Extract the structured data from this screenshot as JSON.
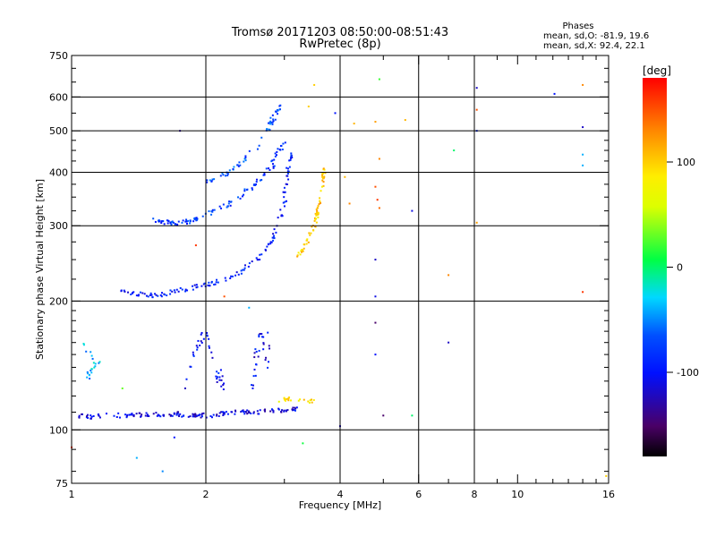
{
  "chart_data": {
    "type": "scatter",
    "title": "Tromsø 20171203 08:50:00-08:51:43",
    "subtitle": "RwPretec (8p)",
    "xlabel": "Frequency [MHz]",
    "ylabel": "Stationary phase Virtual Height [km]",
    "xscale": "log",
    "yscale": "log",
    "xlim": [
      1,
      16
    ],
    "ylim": [
      75,
      750
    ],
    "x_ticks": [
      1,
      2,
      4,
      6,
      8,
      10,
      16
    ],
    "y_ticks": [
      75,
      100,
      200,
      300,
      400,
      500,
      600,
      750
    ],
    "grid": true,
    "info": {
      "heading": "Phases",
      "line_o": "mean, sd,O: -81.9, 19.6",
      "line_x": "mean, sd,X:  92.4, 22.1"
    },
    "colorbar": {
      "label": "[deg]",
      "range": [
        -180,
        180
      ],
      "ticks": [
        -100,
        0,
        100
      ],
      "colormap": "rainbow"
    },
    "traces": [
      {
        "points": [
          [
            1.02,
            108
          ],
          [
            1.1,
            107
          ],
          [
            1.2,
            108
          ],
          [
            1.3,
            108
          ],
          [
            1.4,
            108
          ],
          [
            1.5,
            109
          ],
          [
            1.6,
            108
          ],
          [
            1.7,
            109
          ],
          [
            1.8,
            108
          ],
          [
            1.9,
            108
          ],
          [
            2.0,
            108
          ],
          [
            2.2,
            109
          ],
          [
            2.4,
            110
          ],
          [
            2.6,
            110
          ],
          [
            2.8,
            111
          ],
          [
            3.0,
            111
          ],
          [
            3.2,
            112
          ]
        ],
        "phase": -110,
        "n": 160,
        "spread": 2.5
      },
      {
        "points": [
          [
            1.3,
            210
          ],
          [
            1.4,
            208
          ],
          [
            1.5,
            206
          ],
          [
            1.6,
            207
          ],
          [
            1.7,
            210
          ],
          [
            1.8,
            214
          ],
          [
            2.0,
            218
          ],
          [
            2.2,
            224
          ],
          [
            2.4,
            234
          ],
          [
            2.6,
            250
          ],
          [
            2.8,
            275
          ],
          [
            2.9,
            300
          ],
          [
            3.0,
            340
          ],
          [
            3.05,
            400
          ],
          [
            3.1,
            440
          ]
        ],
        "phase": -95,
        "n": 140,
        "spread": 2.5
      },
      {
        "points": [
          [
            1.5,
            312
          ],
          [
            1.6,
            306
          ],
          [
            1.7,
            304
          ],
          [
            1.8,
            306
          ],
          [
            1.9,
            310
          ],
          [
            2.0,
            318
          ],
          [
            2.2,
            332
          ],
          [
            2.4,
            352
          ],
          [
            2.6,
            378
          ],
          [
            2.8,
            410
          ],
          [
            2.9,
            440
          ],
          [
            3.0,
            470
          ]
        ],
        "phase": -80,
        "n": 110,
        "spread": 2.5
      },
      {
        "points": [
          [
            2.0,
            380
          ],
          [
            2.2,
            395
          ],
          [
            2.4,
            420
          ],
          [
            2.6,
            460
          ],
          [
            2.8,
            520
          ],
          [
            2.95,
            580
          ]
        ],
        "phase": -70,
        "n": 60,
        "spread": 2.5
      },
      {
        "points": [
          [
            3.2,
            255
          ],
          [
            3.3,
            265
          ],
          [
            3.4,
            280
          ],
          [
            3.5,
            300
          ],
          [
            3.55,
            320
          ],
          [
            3.6,
            345
          ],
          [
            3.65,
            380
          ],
          [
            3.7,
            410
          ]
        ],
        "phase": 100,
        "n": 70,
        "spread": 2
      },
      {
        "points": [
          [
            1.05,
            160
          ],
          [
            1.1,
            150
          ],
          [
            1.15,
            145
          ],
          [
            1.1,
            138
          ],
          [
            1.08,
            132
          ]
        ],
        "phase": -40,
        "n": 22,
        "spread": 3
      },
      {
        "points": [
          [
            1.8,
            120
          ],
          [
            1.9,
            150
          ],
          [
            2.0,
            170
          ],
          [
            2.1,
            140
          ],
          [
            2.2,
            125
          ]
        ],
        "phase": -100,
        "n": 40,
        "spread": 4
      },
      {
        "points": [
          [
            2.5,
            120
          ],
          [
            2.6,
            150
          ],
          [
            2.7,
            170
          ],
          [
            2.8,
            130
          ]
        ],
        "phase": -105,
        "n": 30,
        "spread": 4
      },
      {
        "points": [
          [
            2.9,
            115
          ],
          [
            3.0,
            118
          ],
          [
            3.2,
            118
          ],
          [
            3.4,
            116
          ],
          [
            3.5,
            117
          ]
        ],
        "phase": 90,
        "n": 20,
        "spread": 2
      }
    ],
    "scatter": [
      {
        "x": 4.3,
        "y": 520,
        "phase": 110
      },
      {
        "x": 4.8,
        "y": 525,
        "phase": 120
      },
      {
        "x": 5.6,
        "y": 530,
        "phase": 110
      },
      {
        "x": 4.9,
        "y": 660,
        "phase": 20
      },
      {
        "x": 4.8,
        "y": 370,
        "phase": 150
      },
      {
        "x": 4.85,
        "y": 345,
        "phase": 160
      },
      {
        "x": 4.9,
        "y": 330,
        "phase": 140
      },
      {
        "x": 5.8,
        "y": 325,
        "phase": -110
      },
      {
        "x": 4.8,
        "y": 250,
        "phase": -120
      },
      {
        "x": 4.8,
        "y": 205,
        "phase": -110
      },
      {
        "x": 4.8,
        "y": 178,
        "phase": -150
      },
      {
        "x": 4.8,
        "y": 150,
        "phase": -100
      },
      {
        "x": 5.0,
        "y": 108,
        "phase": -150
      },
      {
        "x": 5.8,
        "y": 108,
        "phase": 0
      },
      {
        "x": 4.9,
        "y": 430,
        "phase": 130
      },
      {
        "x": 4.2,
        "y": 338,
        "phase": 130
      },
      {
        "x": 4.1,
        "y": 390,
        "phase": 110
      },
      {
        "x": 7.2,
        "y": 450,
        "phase": 0
      },
      {
        "x": 7.0,
        "y": 230,
        "phase": 130
      },
      {
        "x": 7.0,
        "y": 160,
        "phase": -120
      },
      {
        "x": 8.1,
        "y": 630,
        "phase": -120
      },
      {
        "x": 8.1,
        "y": 560,
        "phase": 150
      },
      {
        "x": 8.1,
        "y": 500,
        "phase": -90
      },
      {
        "x": 8.1,
        "y": 305,
        "phase": 120
      },
      {
        "x": 12.1,
        "y": 610,
        "phase": -100
      },
      {
        "x": 14.0,
        "y": 640,
        "phase": 130
      },
      {
        "x": 14.0,
        "y": 510,
        "phase": -120
      },
      {
        "x": 14.0,
        "y": 440,
        "phase": -40
      },
      {
        "x": 14.0,
        "y": 415,
        "phase": -40
      },
      {
        "x": 14.0,
        "y": 210,
        "phase": 160
      },
      {
        "x": 15.8,
        "y": 78,
        "phase": 100
      },
      {
        "x": 3.9,
        "y": 550,
        "phase": -100
      },
      {
        "x": 3.5,
        "y": 640,
        "phase": 100
      },
      {
        "x": 3.4,
        "y": 570,
        "phase": 100
      },
      {
        "x": 4.0,
        "y": 102,
        "phase": -120
      },
      {
        "x": 3.3,
        "y": 93,
        "phase": 10
      },
      {
        "x": 1.9,
        "y": 270,
        "phase": 160
      },
      {
        "x": 2.2,
        "y": 205,
        "phase": 150
      },
      {
        "x": 1.75,
        "y": 500,
        "phase": -130
      },
      {
        "x": 1.4,
        "y": 86,
        "phase": -40
      },
      {
        "x": 1.7,
        "y": 96,
        "phase": -100
      },
      {
        "x": 1.6,
        "y": 80,
        "phase": -50
      },
      {
        "x": 1.0,
        "y": 91,
        "phase": 160
      },
      {
        "x": 2.5,
        "y": 193,
        "phase": -40
      },
      {
        "x": 1.3,
        "y": 125,
        "phase": 30
      }
    ]
  }
}
